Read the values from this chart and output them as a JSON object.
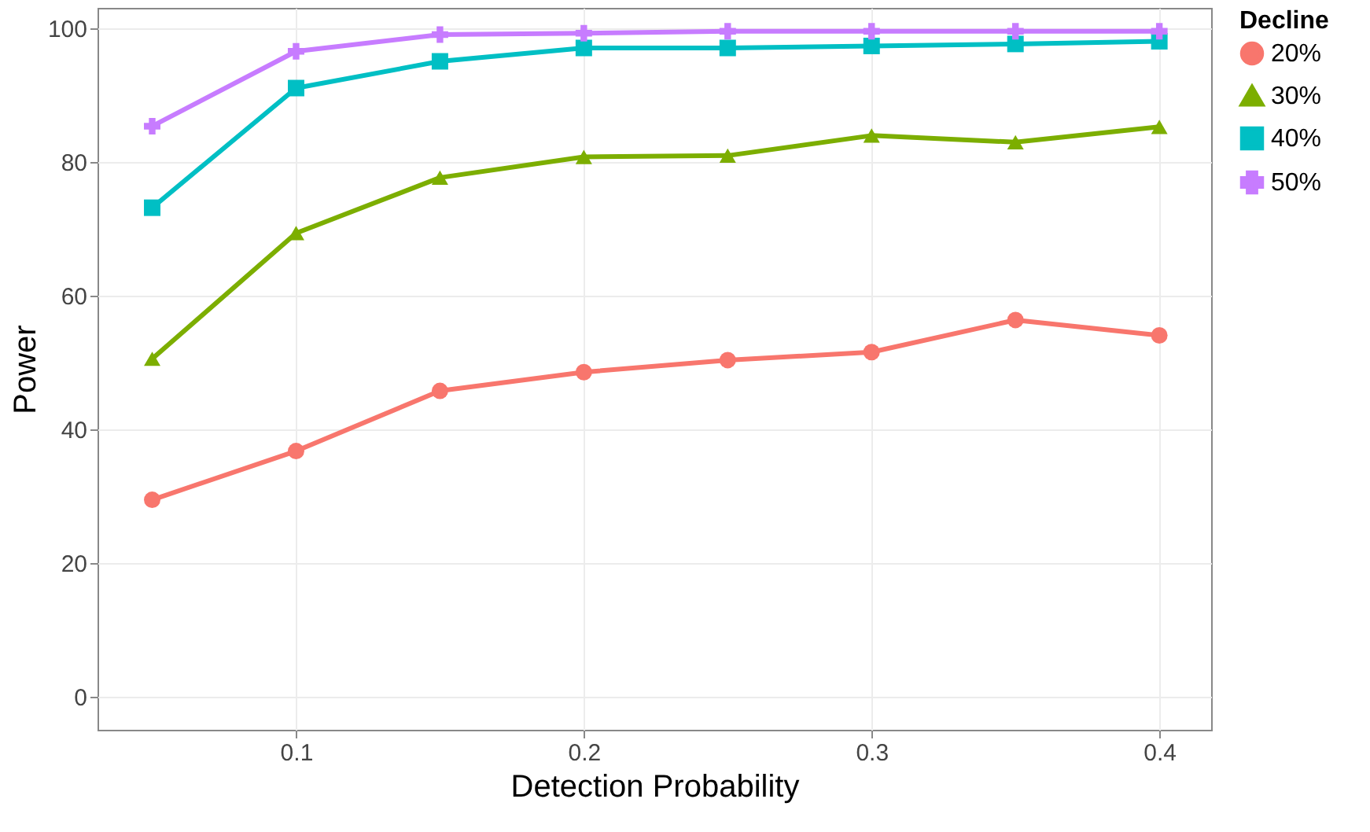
{
  "chart_data": {
    "type": "line",
    "xlabel": "Detection Probability",
    "ylabel": "Power",
    "legend_title": "Decline",
    "legend": "right",
    "grid": true,
    "x": [
      0.05,
      0.1,
      0.15,
      0.2,
      0.25,
      0.3,
      0.35,
      0.4
    ],
    "xlim": [
      0.031,
      0.418
    ],
    "xticks": [
      0.1,
      0.2,
      0.3,
      0.4
    ],
    "ylim": [
      -5,
      103
    ],
    "yticks": [
      0,
      20,
      40,
      60,
      80,
      100
    ],
    "series": [
      {
        "name": "20%",
        "color": "#f8766d",
        "marker": "circle",
        "values": [
          29.4,
          36.7,
          45.7,
          48.5,
          50.3,
          51.5,
          56.3,
          54.0
        ]
      },
      {
        "name": "30%",
        "color": "#7cae00",
        "marker": "triangle",
        "values": [
          50.5,
          69.3,
          77.6,
          80.7,
          80.9,
          83.9,
          82.9,
          85.2
        ]
      },
      {
        "name": "40%",
        "color": "#00bfc4",
        "marker": "square",
        "values": [
          73.1,
          91.0,
          95.0,
          97.0,
          97.0,
          97.3,
          97.6,
          98.0
        ]
      },
      {
        "name": "50%",
        "color": "#c77cff",
        "marker": "cross",
        "values": [
          85.3,
          96.5,
          99.0,
          99.2,
          99.5,
          99.5,
          99.5,
          99.5
        ]
      }
    ]
  }
}
